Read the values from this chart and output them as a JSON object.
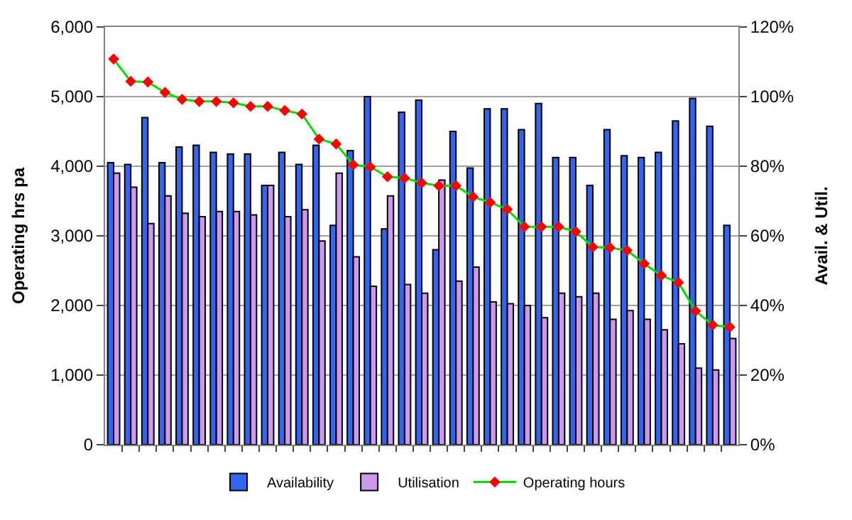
{
  "chart_data": {
    "type": "bar",
    "categories": [
      null,
      null,
      null,
      null,
      null,
      null,
      null,
      null,
      null,
      null,
      null,
      null,
      null,
      null,
      null,
      null,
      null,
      null,
      null,
      null,
      null,
      null,
      null,
      null,
      null,
      null,
      null,
      null,
      null,
      null,
      null,
      null,
      null,
      null,
      null,
      null,
      null
    ],
    "ylabel": "Operating hrs pa",
    "y2label": "Avail. & Util.",
    "ylim": [
      0,
      6000
    ],
    "yticks": [
      0,
      {
        "value": 1000,
        "label": "1,000"
      },
      {
        "value": 2000,
        "label": "2,000"
      },
      {
        "value": 3000,
        "label": "3,000"
      },
      {
        "value": 4000,
        "label": "4,000"
      },
      {
        "value": 5000,
        "label": "5,000"
      },
      {
        "value": 6000,
        "label": "6,000"
      }
    ],
    "y2lim": [
      0,
      120
    ],
    "y2ticks": [
      {
        "value": 0,
        "label": "0%"
      },
      {
        "value": 20,
        "label": "20%"
      },
      {
        "value": 40,
        "label": "40%"
      },
      {
        "value": 60,
        "label": "60%"
      },
      {
        "value": 80,
        "label": "80%"
      },
      {
        "value": 100,
        "label": "100%"
      },
      {
        "value": 120,
        "label": "120%"
      }
    ],
    "grid": "y",
    "legend": "bottom",
    "series": [
      {
        "name": "Availability",
        "axis": "y2",
        "color": "#3366ee",
        "values": [
          81,
          80.5,
          94,
          81,
          85.5,
          86,
          84,
          83.5,
          83.5,
          74.5,
          84,
          80.5,
          86,
          63,
          84.5,
          100,
          62,
          95.5,
          99,
          56,
          90,
          79.5,
          96.5,
          96.5,
          90.5,
          98,
          82.5,
          82.5,
          74.5,
          90.5,
          83,
          82.5,
          84,
          93,
          99.5,
          91.5,
          63
        ]
      },
      {
        "name": "Utilisation",
        "axis": "y2",
        "color": "#cc99ee",
        "values": [
          78,
          74,
          63.5,
          71.5,
          66.5,
          65.5,
          67,
          67,
          66,
          74.5,
          65.5,
          67.5,
          58.5,
          78,
          54,
          45.5,
          71.5,
          46,
          43.5,
          76,
          47,
          51,
          41,
          40.5,
          40,
          36.5,
          43.5,
          42.5,
          43.5,
          36,
          38.5,
          36,
          33,
          29,
          22,
          21.5,
          30.5
        ]
      },
      {
        "name": "Operating hours",
        "type": "line",
        "axis": "y",
        "color": "#00dd00",
        "marker": "diamond",
        "values": [
          5540,
          5220,
          5210,
          5060,
          4960,
          4930,
          4930,
          4910,
          4860,
          4860,
          4800,
          4750,
          4390,
          4320,
          4020,
          3990,
          3850,
          3830,
          3760,
          3720,
          3720,
          3560,
          3480,
          3380,
          3130,
          3130,
          3130,
          3060,
          2840,
          2830,
          2790,
          2600,
          2430,
          2330,
          1920,
          1720,
          1690
        ]
      }
    ]
  }
}
